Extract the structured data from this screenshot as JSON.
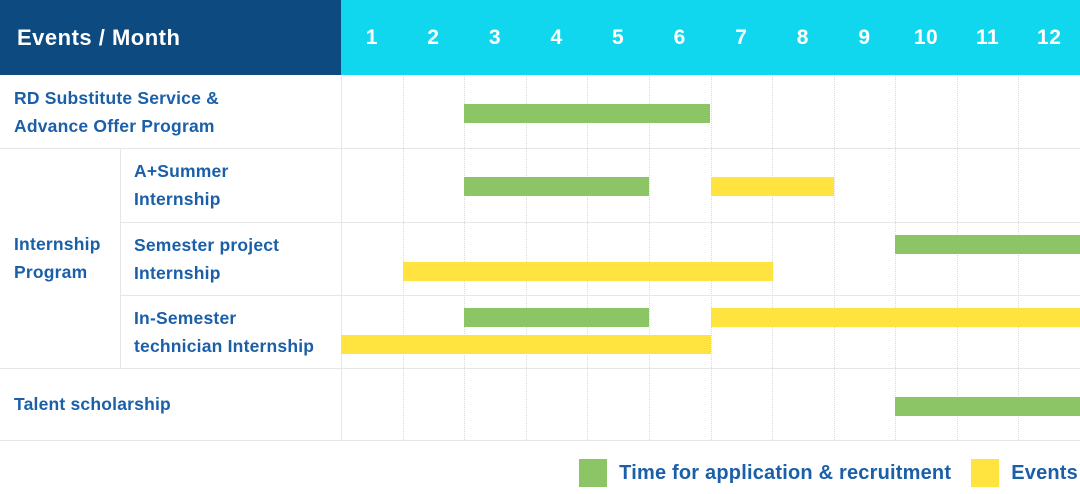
{
  "title_cell": "Events / Month",
  "months": [
    "1",
    "2",
    "3",
    "4",
    "5",
    "6",
    "7",
    "8",
    "9",
    "10",
    "11",
    "12"
  ],
  "legend": {
    "items": [
      {
        "kind": "application",
        "label": "Time for application & recruitment"
      },
      {
        "kind": "event",
        "label": "Events"
      }
    ]
  },
  "colors": {
    "header_bg": "#0C4A80",
    "month_header_bg": "#10D7EE",
    "header_text": "#FFFFFF",
    "label_text": "#1A5FA8",
    "application": "#8CC565",
    "event": "#FFE33F",
    "grid": "#E6E6E6"
  },
  "chart_data": {
    "type": "gantt",
    "unit": "month",
    "x_range": [
      1,
      12
    ],
    "x_ticks": [
      "1",
      "2",
      "3",
      "4",
      "5",
      "6",
      "7",
      "8",
      "9",
      "10",
      "11",
      "12"
    ],
    "corner_title": "Events / Month",
    "legend": {
      "application": "Time for application & recruitment",
      "event": "Events"
    },
    "groups": [
      {
        "label_lines": [
          "Internship",
          "Program"
        ],
        "first_row": 1,
        "last_row": 3
      }
    ],
    "rows": [
      {
        "label_lines": [
          "RD Substitute Service &",
          "Advance Offer Program"
        ],
        "in_group": false,
        "bars": [
          {
            "kind": "application",
            "track": "mid",
            "start_month": 3,
            "end_month": 6
          }
        ]
      },
      {
        "label_lines": [
          "A+Summer",
          "Internship"
        ],
        "in_group": true,
        "bars": [
          {
            "kind": "application",
            "track": "mid",
            "start_month": 3,
            "end_month": 5
          },
          {
            "kind": "event",
            "track": "mid",
            "start_month": 7,
            "end_month": 8
          }
        ]
      },
      {
        "label_lines": [
          "Semester project",
          "Internship"
        ],
        "in_group": true,
        "bars": [
          {
            "kind": "application",
            "track": "top",
            "start_month": 10,
            "end_month": 12
          },
          {
            "kind": "event",
            "track": "bottom",
            "start_month": 2,
            "end_month": 7
          }
        ]
      },
      {
        "label_lines": [
          "In-Semester",
          "technician Internship"
        ],
        "in_group": true,
        "bars": [
          {
            "kind": "application",
            "track": "top",
            "start_month": 3,
            "end_month": 5
          },
          {
            "kind": "event",
            "track": "top",
            "start_month": 7,
            "end_month": 12
          },
          {
            "kind": "event",
            "track": "bottom",
            "start_month": 1,
            "end_month": 6
          }
        ]
      },
      {
        "label_lines": [
          "Talent scholarship"
        ],
        "in_group": false,
        "bars": [
          {
            "kind": "application",
            "track": "mid",
            "start_month": 10,
            "end_month": 12
          }
        ]
      }
    ]
  }
}
